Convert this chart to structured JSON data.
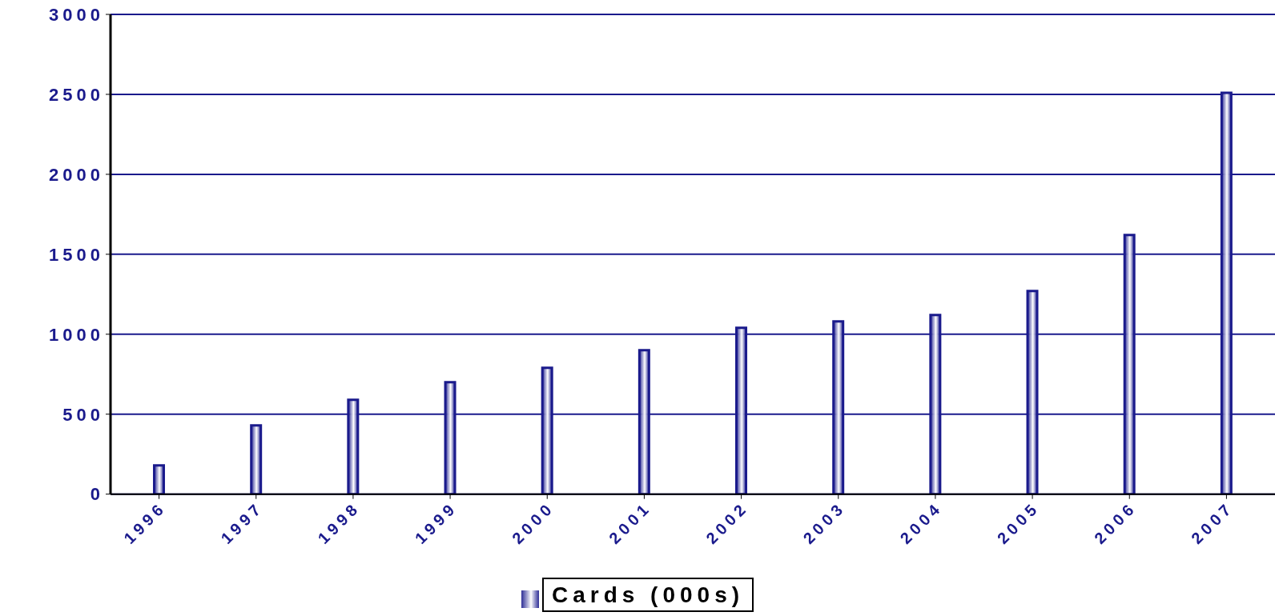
{
  "chart_data": {
    "type": "bar",
    "categories": [
      "1996",
      "1997",
      "1998",
      "1999",
      "2000",
      "2001",
      "2002",
      "2003",
      "2004",
      "2005",
      "2006",
      "2007"
    ],
    "series": [
      {
        "name": "Cards (000s)",
        "color": "#1a1a8c",
        "values": [
          180,
          430,
          590,
          700,
          790,
          900,
          1040,
          1080,
          1120,
          1270,
          1620,
          2510
        ]
      }
    ],
    "ylim": [
      0,
      3000
    ],
    "yticks": [
      0,
      500,
      1000,
      1500,
      2000,
      2500,
      3000
    ],
    "grid": "y",
    "legend": "bottom"
  }
}
